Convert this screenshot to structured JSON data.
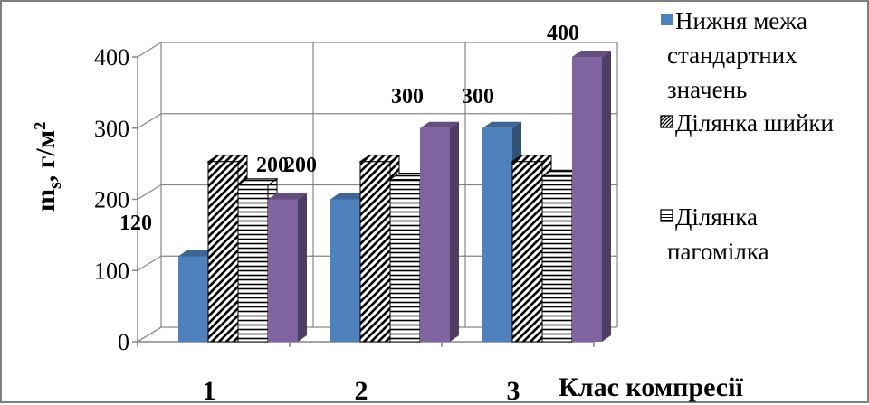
{
  "chart_data": {
    "type": "bar",
    "categories": [
      "1",
      "2",
      "3"
    ],
    "series": [
      {
        "name": "Нижня межа стандартних значень",
        "values": [
          120,
          200,
          300
        ],
        "color": "#4f81bd",
        "pattern": "solid"
      },
      {
        "name": "Ділянка шийки",
        "values": [
          253,
          253,
          253
        ],
        "color": "#000000",
        "pattern": "diagonal"
      },
      {
        "name": "Ділянка пагомілка",
        "values": [
          220,
          228,
          232
        ],
        "color": "#000000",
        "pattern": "horizontal"
      },
      {
        "name": "",
        "values": [
          200,
          300,
          400
        ],
        "color": "#8064a2",
        "pattern": "solid"
      }
    ],
    "data_labels": [
      {
        "series": 0,
        "category": 0,
        "text": "120"
      },
      {
        "series": 3,
        "category": 0,
        "text": "200"
      },
      {
        "series": 0,
        "category": 1,
        "text": "200"
      },
      {
        "series": 3,
        "category": 1,
        "text": "300"
      },
      {
        "series": 0,
        "category": 2,
        "text": "300"
      },
      {
        "series": 3,
        "category": 2,
        "text": "400"
      }
    ],
    "yticks": [
      "0",
      "100",
      "200",
      "300",
      "400"
    ],
    "ylim": [
      0,
      400
    ],
    "ylabel": "m_s, г/м²",
    "ylabel_main": "m",
    "ylabel_sub": "s",
    "ylabel_rest": ", г/м",
    "ylabel_sup": "2",
    "xlabel": "Клас компресії",
    "grid": true,
    "style": "3d-clustered-column",
    "legend_position": "right",
    "legend": [
      {
        "lines": [
          "Нижня межа",
          "стандартних",
          "значень"
        ],
        "pattern": "solid",
        "color": "#4f81bd"
      },
      {
        "lines": [
          "Ділянка шийки"
        ],
        "pattern": "diagonal",
        "color": "#000000"
      },
      {
        "lines": [
          "Ділянка",
          "пагомілка"
        ],
        "pattern": "horizontal",
        "color": "#000000"
      }
    ]
  }
}
